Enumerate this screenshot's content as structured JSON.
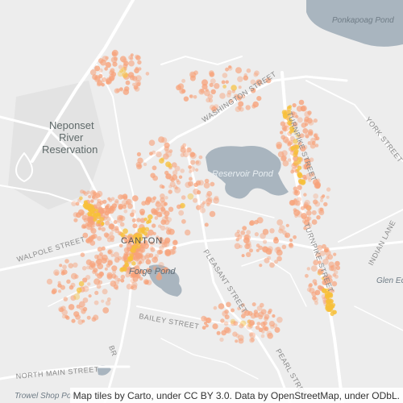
{
  "map": {
    "labels": {
      "ponkapoag_pond": "Ponkapoag Pond",
      "neponset_line1": "Neponset",
      "neponset_line2": "River",
      "neponset_line3": "Reservation",
      "reservoir_pond": "Reservoir Pond",
      "canton": "CANTON",
      "forge_pond": "Forge Pond",
      "glen_echo": "Glen Ec",
      "trowel_shop_pond": "Trowel Shop Pond"
    },
    "streets": {
      "washington": "WASHINGTON STREET",
      "turnpike_north": "TURNPIKE STREET",
      "turnpike_south": "TURNPIKE STREET",
      "york": "YORK STREET",
      "indian_lane": "INDIAN LANE",
      "walpole": "WALPOLE STREET",
      "pleasant": "PLEASANT STREET",
      "bailey": "BAILEY STREET",
      "north_main": "NORTH MAIN STREET",
      "pearl": "PEARL STREET"
    },
    "attribution": "Map tiles by Carto, under CC BY 3.0. Data by OpenStreetMap, under ODbL."
  },
  "colors": {
    "background": "#ededed",
    "water": "#a9b5bf",
    "park": "#dcdcdc",
    "road": "#ffffff",
    "point": "#f7a27a",
    "point_dense": "#f7c03a"
  }
}
